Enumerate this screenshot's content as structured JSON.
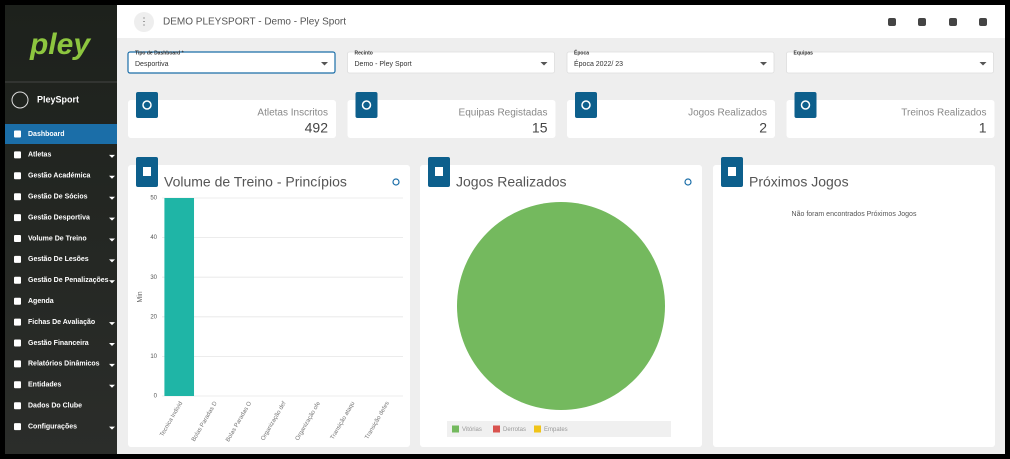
{
  "header": {
    "title": "DEMO PLEYSPORT - Demo - Pley Sport"
  },
  "sidebar": {
    "logo": "pley",
    "user": "PleySport",
    "menu": [
      {
        "label": "Dashboard",
        "active": true
      },
      {
        "label": "Atletas",
        "submenu": true
      },
      {
        "label": "Gestão Académica",
        "submenu": true
      },
      {
        "label": "Gestão De Sócios",
        "submenu": true
      },
      {
        "label": "Gestão Desportiva",
        "submenu": true
      },
      {
        "label": "Volume De Treino",
        "submenu": true
      },
      {
        "label": "Gestão De Lesões",
        "submenu": true
      },
      {
        "label": "Gestão De Penalizações",
        "submenu": true
      },
      {
        "label": "Agenda"
      },
      {
        "label": "Fichas De Avaliação",
        "submenu": true
      },
      {
        "label": "Gestão Financeira",
        "submenu": true
      },
      {
        "label": "Relatórios Dinâmicos",
        "submenu": true
      },
      {
        "label": "Entidades",
        "submenu": true
      },
      {
        "label": "Dados Do Clube"
      },
      {
        "label": "Configurações",
        "submenu": true
      }
    ]
  },
  "filters": [
    {
      "label": "Tipo de Dashboard *",
      "value": "Desportiva",
      "focused": true
    },
    {
      "label": "Recinto",
      "value": "Demo - Pley Sport"
    },
    {
      "label": "Época",
      "value": "Época 2022/ 23"
    },
    {
      "label": "Equipas"
    }
  ],
  "stats": [
    {
      "label": "Atletas Inscritos",
      "value": 492
    },
    {
      "label": "Equipas Registadas",
      "value": 15
    },
    {
      "label": "Jogos Realizados",
      "value": 2
    },
    {
      "label": "Treinos Realizados",
      "value": 1
    }
  ],
  "chart_data": [
    {
      "type": "bar",
      "title": "Volume de Treino - Princípios",
      "y_label": "Min",
      "categories": [
        "Tecnica Individ",
        "Bolas Paradas D",
        "Bolas Paradas O",
        "Organização def",
        "Organização ofe",
        "Transição ataqu",
        "Transição defes"
      ],
      "values": [
        50,
        0,
        0,
        0,
        0,
        0,
        0
      ],
      "color": "#1fb5a6",
      "ylim": [
        0,
        50
      ],
      "yticks": [
        0,
        10,
        20,
        30,
        40,
        50
      ],
      "grid": true
    },
    {
      "type": "pie",
      "title": "Jogos Realizados",
      "categories": [
        "Vitórias",
        "Derrotas",
        "Empates"
      ],
      "values": [
        2,
        0,
        0
      ],
      "colors": [
        "#74b95e",
        "#d9534f",
        "#f0c419"
      ]
    }
  ],
  "upcoming": {
    "title": "Próximos Jogos",
    "message": "Não foram encontrados Próximos Jogos"
  }
}
